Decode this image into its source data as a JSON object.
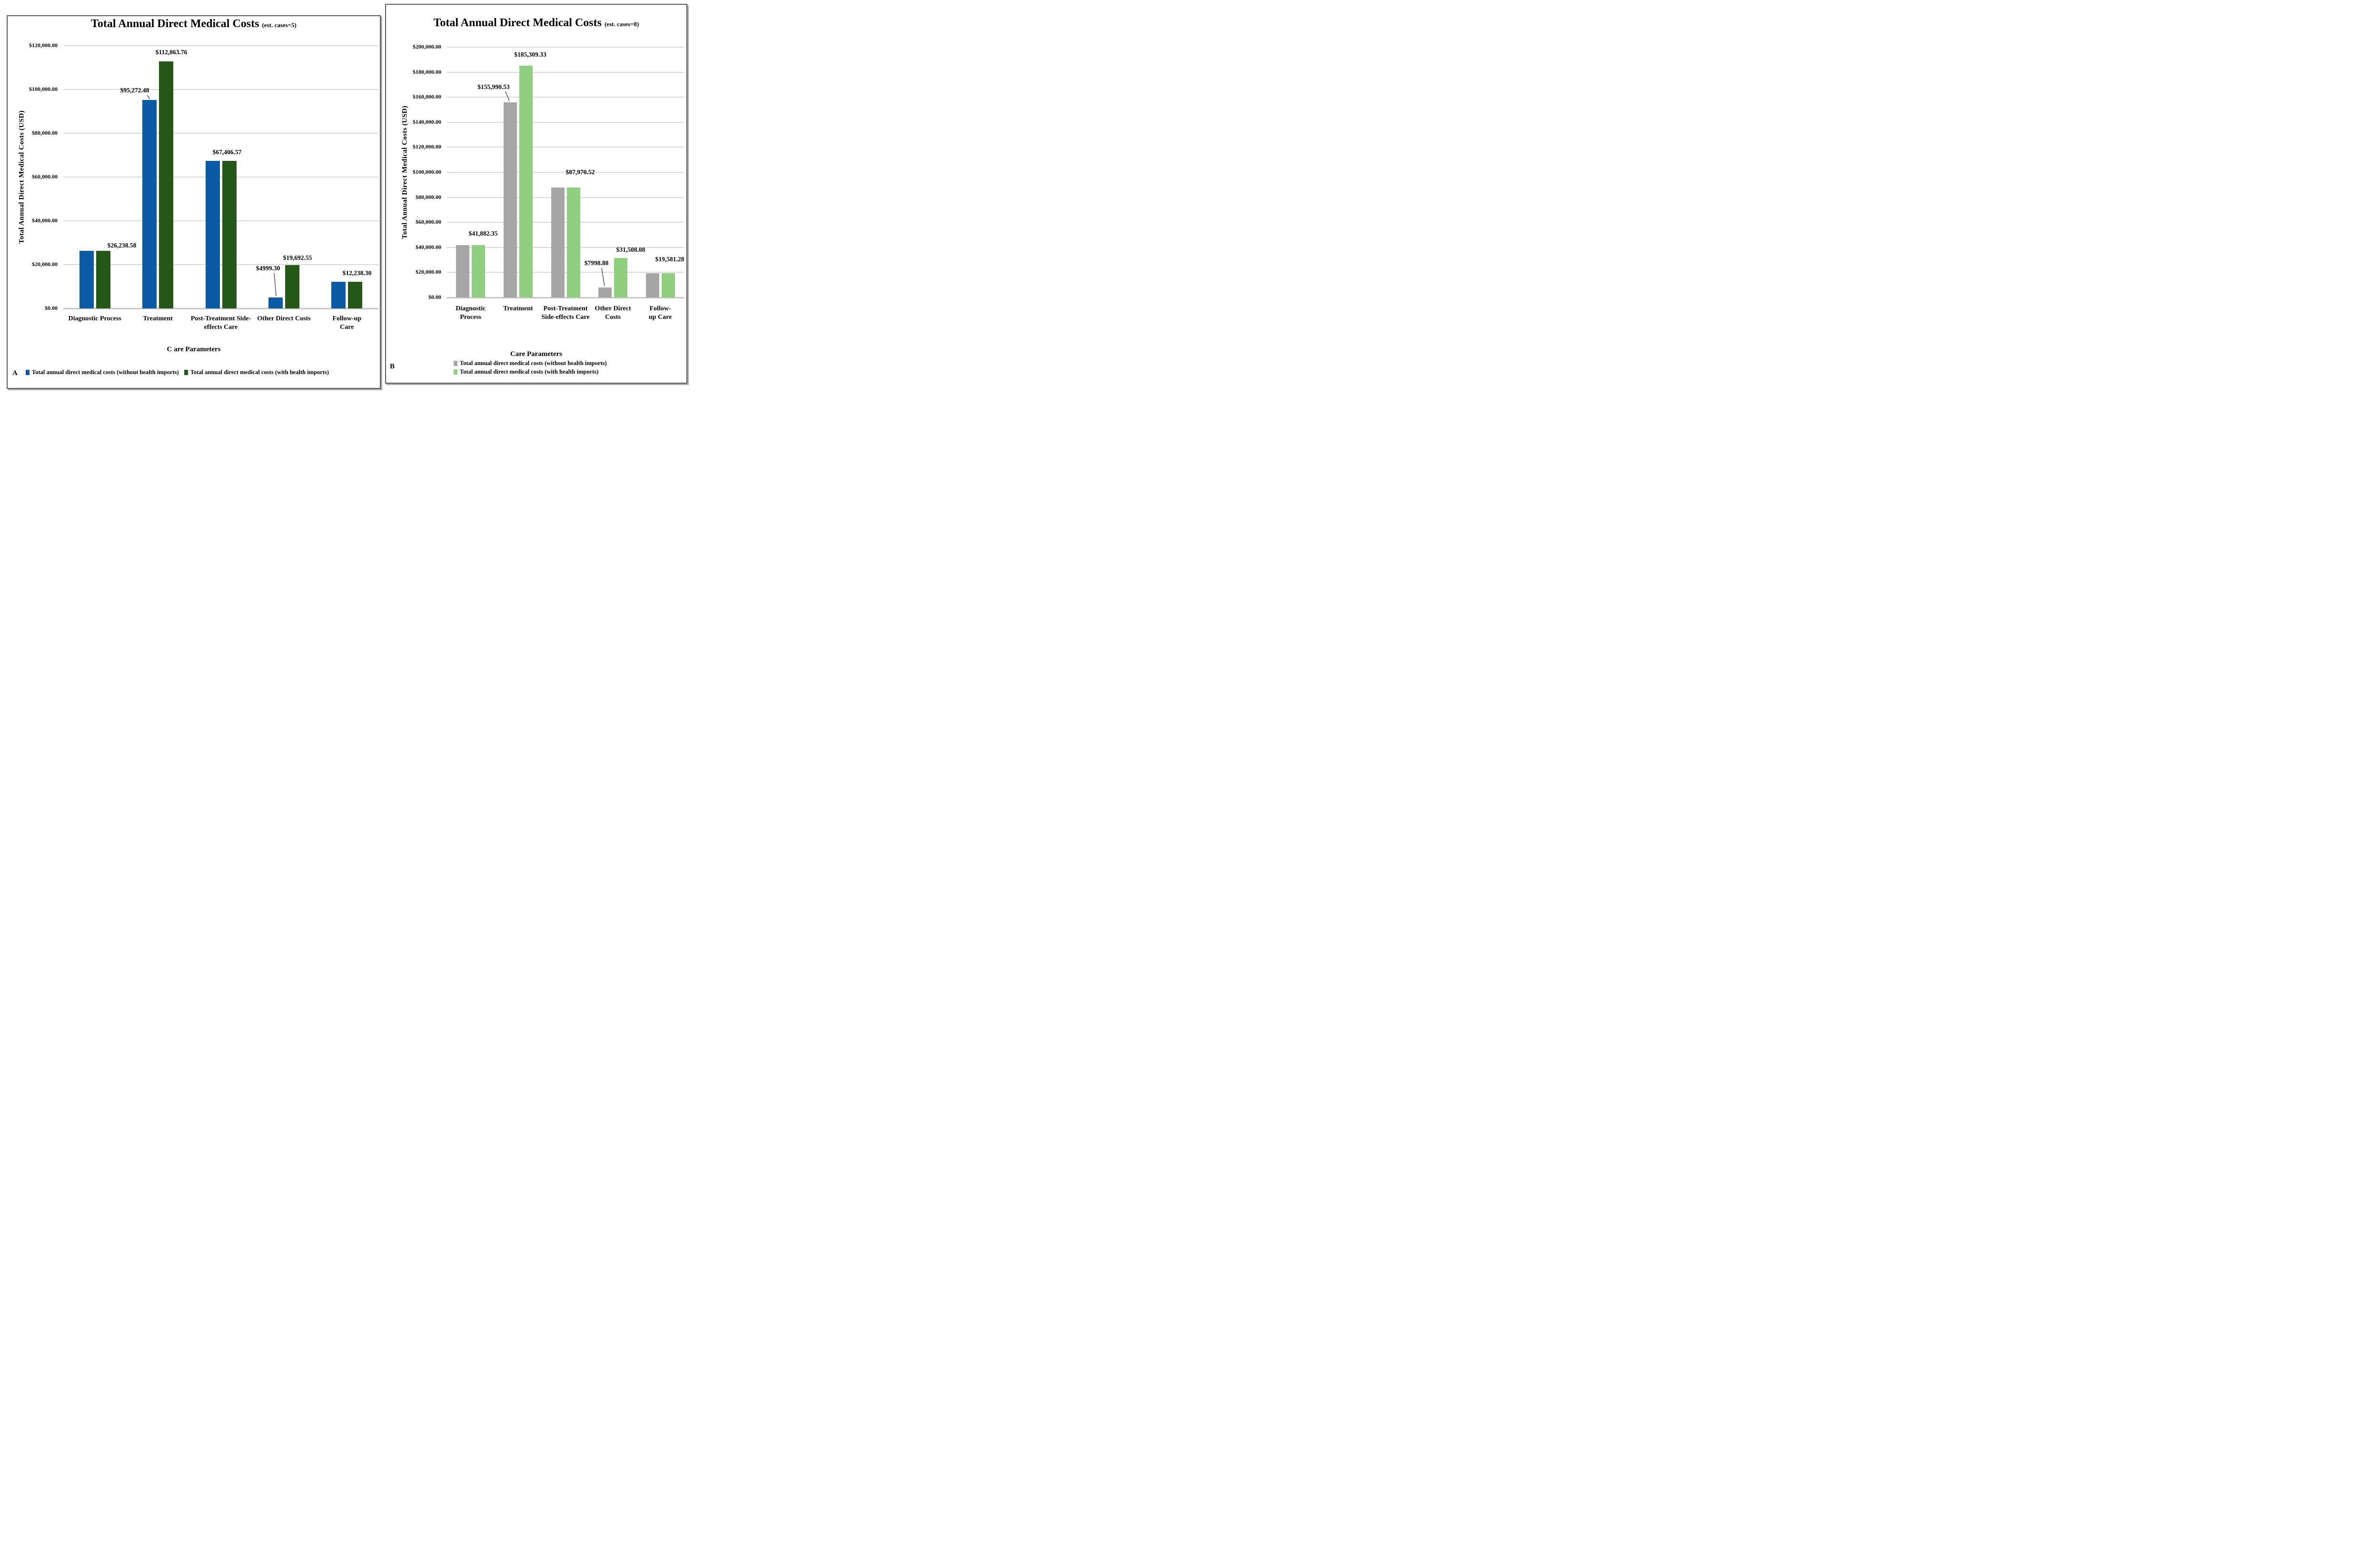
{
  "colors": {
    "grid": "#d9d9d9",
    "baseline": "#c8c6c6",
    "callout_line": "#3a3a3a",
    "panel_border": "#595959",
    "series_blue": "#0a5aa6",
    "series_dark_green": "#245718",
    "series_gray": "#a6a6a6",
    "series_light_green": "#8fcf7f"
  },
  "chart_data": [
    {
      "panel_letter": "A",
      "type": "bar",
      "title": "Total Annual Direct Medical Costs",
      "subtitle": "(est. cases=5)",
      "ylabel": "Total Annual  Direct Medical Costs (USD)",
      "xlabel": "C are Parameters",
      "ylim": [
        0,
        120000
      ],
      "ystep": 20000,
      "grid": true,
      "legend_position": "bottom",
      "y_tick_labels": [
        "$120,000.00",
        "$100,000.00",
        "$80,000.00",
        "$60,000.00",
        "$40,000.00",
        "$20,000.00",
        "$0.00"
      ],
      "categories": [
        "Diagnostic Process",
        "Treatment",
        "Post-Treatment Side-\neffects Care",
        "Other Direct Costs",
        "Follow-up Care"
      ],
      "series": [
        {
          "name": "Total annual direct medical costs (without health imports)",
          "color": "#0a5aa6",
          "values": [
            26238.58,
            95272.48,
            67406.57,
            4999.3,
            12238.3
          ]
        },
        {
          "name": "Total annual direct medical costs (with health imports)",
          "color": "#245718",
          "values": [
            26238.58,
            112863.76,
            67406.57,
            19692.55,
            12238.3
          ]
        }
      ],
      "value_labels": [
        {
          "text": "$26,238.58",
          "category_index": 0,
          "series_index": null
        },
        {
          "text": "$95,272.48",
          "category_index": 1,
          "series_index": 0,
          "callout": true
        },
        {
          "text": "$112,863.76",
          "category_index": 1,
          "series_index": 1
        },
        {
          "text": "$67,406.57",
          "category_index": 2,
          "series_index": null
        },
        {
          "text": "$4999.30",
          "category_index": 3,
          "series_index": 0,
          "callout": true
        },
        {
          "text": "$19,692.55",
          "category_index": 3,
          "series_index": 1
        },
        {
          "text": "$12,238.30",
          "category_index": 4,
          "series_index": null
        }
      ]
    },
    {
      "panel_letter": "B",
      "type": "bar",
      "title": "Total Annual Direct Medical Costs",
      "subtitle": "(est. cases=8)",
      "ylabel": "Total Annual  Direct Medical Costs (USD)",
      "xlabel": "Care Parameters",
      "ylim": [
        0,
        200000
      ],
      "ystep": 20000,
      "grid": true,
      "legend_position": "bottom",
      "y_tick_labels": [
        "$200,000.00",
        "$180,000.00",
        "$160,000.00",
        "$140,000.00",
        "$120,000.00",
        "$100,000.00",
        "$80,000.00",
        "$60,000.00",
        "$40,000.00",
        "$20,000.00",
        "$0.00"
      ],
      "categories": [
        "Diagnostic\nProcess",
        "Treatment",
        "Post-Treatment\nSide-effects Care",
        "Other Direct\nCosts",
        "Follow-up Care"
      ],
      "series": [
        {
          "name": "Total annual direct medical costs (without health imports)",
          "color": "#a6a6a6",
          "values": [
            41882.35,
            155990.53,
            87970.52,
            7998.88,
            19581.28
          ]
        },
        {
          "name": "Total annual direct medical costs (with health imports)",
          "color": "#8fcf7f",
          "values": [
            41882.35,
            185309.33,
            87970.52,
            31508.08,
            19581.28
          ]
        }
      ],
      "value_labels": [
        {
          "text": "$41,882.35",
          "category_index": 0,
          "series_index": null
        },
        {
          "text": "$155,990.53",
          "category_index": 1,
          "series_index": 0,
          "callout": true
        },
        {
          "text": "$185,309.33",
          "category_index": 1,
          "series_index": 1
        },
        {
          "text": "$87,970.52",
          "category_index": 2,
          "series_index": null
        },
        {
          "text": "$7998.88",
          "category_index": 3,
          "series_index": 0,
          "callout": true
        },
        {
          "text": "$31,508.08",
          "category_index": 3,
          "series_index": 1
        },
        {
          "text": "$19,581.28",
          "category_index": 4,
          "series_index": null
        }
      ]
    }
  ]
}
